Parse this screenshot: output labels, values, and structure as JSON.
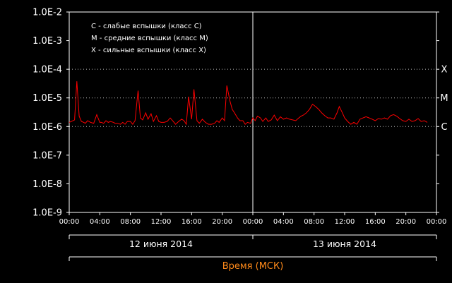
{
  "chart_data": {
    "type": "line",
    "title": "",
    "xlabel": "Время (МСК)",
    "ylabel": "",
    "y_scale": "log",
    "ylim": [
      1e-09,
      0.01
    ],
    "y_ticks": [
      "1.0E-9",
      "1.0E-8",
      "1.0E-7",
      "1.0E-6",
      "1.0E-5",
      "1.0E-4",
      "1.0E-3",
      "1.0E-2"
    ],
    "x_range_hours": [
      0,
      48
    ],
    "x_ticks": [
      "00:00",
      "04:00",
      "08:00",
      "12:00",
      "16:00",
      "20:00",
      "00:00",
      "04:00",
      "08:00",
      "12:00",
      "16:00",
      "20:00",
      "00:00"
    ],
    "day_labels": [
      "12 июня 2014",
      "13 июня 2014"
    ],
    "grid": "dotted lines at C, M, X levels",
    "flare_levels": [
      {
        "label": "X",
        "value": 0.0001
      },
      {
        "label": "M",
        "value": 1e-05
      },
      {
        "label": "C",
        "value": 1e-06
      }
    ],
    "legend": [
      "C - слабые вспышки (класс C)",
      "M - средние вспышки (класс M)",
      "X - сильные вспышки (класс X)"
    ],
    "legend_placement": "top-left",
    "series": [
      {
        "color": "#ff0000",
        "x": [
          0,
          0.7,
          1.0,
          1.3,
          1.6,
          1.9,
          2.1,
          2.4,
          2.8,
          3.2,
          3.6,
          4.0,
          4.2,
          4.5,
          4.8,
          5.1,
          5.4,
          5.8,
          6.0,
          6.3,
          6.7,
          7.0,
          7.3,
          7.6,
          8.0,
          8.3,
          8.6,
          9.0,
          9.3,
          9.6,
          10.0,
          10.3,
          10.7,
          11.0,
          11.4,
          11.7,
          12.0,
          12.4,
          12.8,
          13.2,
          13.6,
          13.9,
          14.3,
          14.7,
          15.0,
          15.3,
          15.6,
          16.0,
          16.3,
          16.7,
          17.0,
          17.4,
          17.8,
          18.2,
          18.6,
          19.0,
          19.3,
          19.6,
          20.0,
          20.3,
          20.6,
          21.0,
          21.3,
          21.6,
          22.0,
          22.3,
          22.7,
          23.0,
          23.3,
          23.7,
          24.0,
          24.3,
          24.6,
          25.0,
          25.3,
          25.7,
          26.0,
          26.4,
          26.8,
          27.2,
          27.6,
          28.0,
          28.4,
          28.8,
          29.2,
          29.6,
          30.0,
          30.3,
          30.6,
          31.0,
          31.4,
          31.8,
          32.2,
          32.6,
          33.0,
          33.4,
          33.8,
          34.2,
          34.6,
          35.0,
          35.3,
          35.7,
          36.0,
          36.4,
          36.8,
          37.2,
          37.6,
          38.0,
          38.4,
          38.8,
          39.2,
          39.6,
          40.0,
          40.4,
          40.8,
          41.2,
          41.6,
          42.0,
          42.4,
          42.8,
          43.2,
          43.6,
          44.0,
          44.4,
          44.8,
          45.2,
          45.6,
          46.0,
          46.4,
          46.8
        ],
        "y": [
          1.4e-06,
          1.7e-06,
          3.8e-05,
          2.3e-06,
          1.5e-06,
          1.4e-06,
          1.3e-06,
          1.6e-06,
          1.4e-06,
          1.3e-06,
          2.6e-06,
          1.4e-06,
          1.4e-06,
          1.3e-06,
          1.6e-06,
          1.4e-06,
          1.5e-06,
          1.4e-06,
          1.3e-06,
          1.3e-06,
          1.2e-06,
          1.4e-06,
          1.2e-06,
          1.5e-06,
          1.5e-06,
          1.2e-06,
          1.6e-06,
          1.8e-05,
          2e-06,
          1.7e-06,
          3e-06,
          1.8e-06,
          2.8e-06,
          1.5e-06,
          2.4e-06,
          1.5e-06,
          1.4e-06,
          1.4e-06,
          1.5e-06,
          2e-06,
          1.5e-06,
          1.2e-06,
          1.5e-06,
          1.8e-06,
          1.6e-06,
          1.2e-06,
          1.1e-05,
          1.8e-06,
          2e-05,
          1.6e-06,
          1.3e-06,
          1.8e-06,
          1.4e-06,
          1.2e-06,
          1.2e-06,
          1.3e-06,
          1.6e-06,
          1.4e-06,
          2e-06,
          1.6e-06,
          2.7e-05,
          8e-06,
          4e-06,
          3e-06,
          2e-06,
          1.6e-06,
          1.6e-06,
          1.2e-06,
          1.4e-06,
          1.3e-06,
          2e-06,
          1.6e-06,
          2.3e-06,
          2e-06,
          1.5e-06,
          2e-06,
          1.5e-06,
          1.7e-06,
          2.5e-06,
          1.6e-06,
          2.2e-06,
          1.8e-06,
          2e-06,
          1.8e-06,
          1.7e-06,
          1.6e-06,
          2e-06,
          2.3e-06,
          2.5e-06,
          3e-06,
          4e-06,
          6e-06,
          5e-06,
          4e-06,
          3e-06,
          2.4e-06,
          2e-06,
          2e-06,
          1.8e-06,
          3e-06,
          5e-06,
          3e-06,
          2e-06,
          1.5e-06,
          1.2e-06,
          1.4e-06,
          1.2e-06,
          1.8e-06,
          2e-06,
          2.2e-06,
          2e-06,
          1.8e-06,
          1.6e-06,
          1.9e-06,
          1.8e-06,
          2e-06,
          1.8e-06,
          2.4e-06,
          2.6e-06,
          2.3e-06,
          1.9e-06,
          1.6e-06,
          1.5e-06,
          1.8e-06,
          1.5e-06,
          1.6e-06,
          1.9e-06,
          1.5e-06,
          1.6e-06,
          1.4e-06
        ]
      }
    ]
  }
}
